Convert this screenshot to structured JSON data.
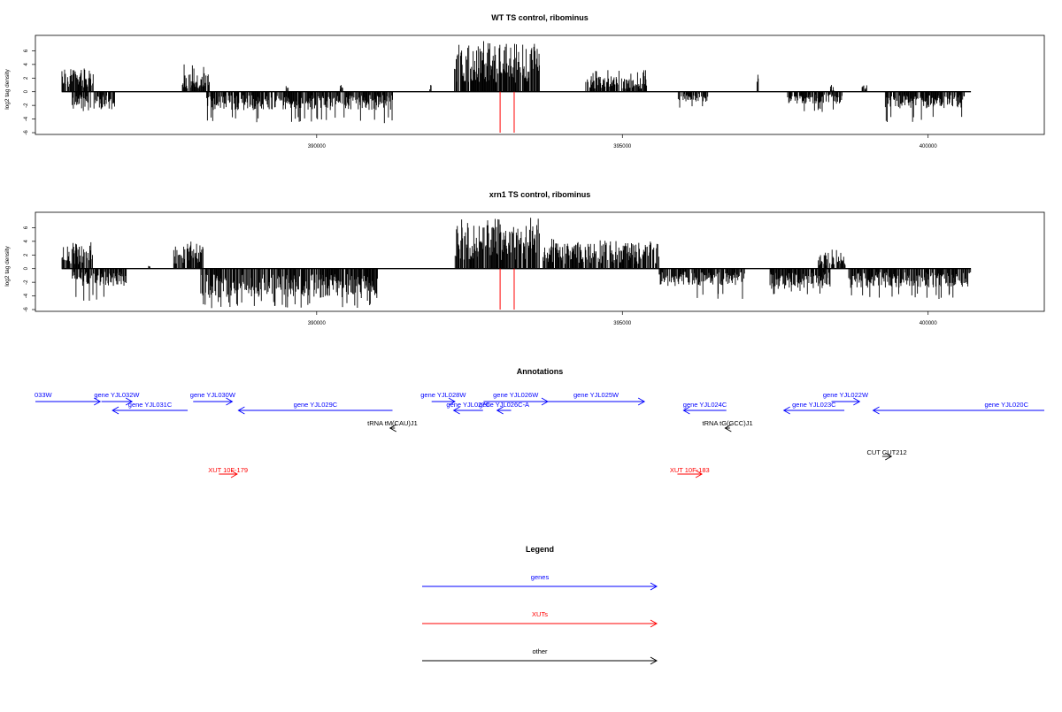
{
  "chart_data": [
    {
      "type": "bar",
      "title": "WT TS control, ribominus",
      "ylabel": "log2 tag density",
      "ylim": [
        -6,
        8
      ],
      "yticks": [
        -6,
        -4,
        -2,
        0,
        2,
        4,
        6
      ],
      "xlim": [
        385400,
        401900
      ],
      "xticks": [
        390000,
        395000,
        400000
      ],
      "features": [
        393000,
        393230
      ],
      "feature_color": "#ff0000",
      "plus_segments": [
        {
          "start": 385830,
          "end": 386350,
          "avg": 2.4,
          "max": 3.6
        },
        {
          "start": 387800,
          "end": 388250,
          "avg": 2.0,
          "max": 4.0
        },
        {
          "start": 389500,
          "end": 389540,
          "avg": 0.9,
          "max": 1.0
        },
        {
          "start": 390380,
          "end": 390430,
          "avg": 0.9,
          "max": 1.0
        },
        {
          "start": 391850,
          "end": 391880,
          "avg": 0.9,
          "max": 1.0
        },
        {
          "start": 392250,
          "end": 393650,
          "avg": 5.2,
          "max": 7.5
        },
        {
          "start": 394400,
          "end": 395400,
          "avg": 1.7,
          "max": 3.2
        },
        {
          "start": 397200,
          "end": 397230,
          "avg": 2.0,
          "max": 2.5
        },
        {
          "start": 398400,
          "end": 398470,
          "avg": 0.7,
          "max": 1.0
        },
        {
          "start": 398920,
          "end": 399000,
          "avg": 0.8,
          "max": 1.0
        }
      ],
      "minus_segments": [
        {
          "start": 386000,
          "end": 386700,
          "avg": 1.9,
          "max": 3.0
        },
        {
          "start": 388200,
          "end": 391250,
          "avg": 2.0,
          "max": 4.6
        },
        {
          "start": 395900,
          "end": 396400,
          "avg": 1.1,
          "max": 2.5
        },
        {
          "start": 397700,
          "end": 398600,
          "avg": 1.3,
          "max": 3.0
        },
        {
          "start": 399300,
          "end": 400600,
          "avg": 1.8,
          "max": 4.5
        }
      ]
    },
    {
      "type": "bar",
      "title": "xrn1 TS control, ribominus",
      "ylabel": "log2 tag density",
      "ylim": [
        -6,
        8
      ],
      "yticks": [
        -6,
        -4,
        -2,
        0,
        2,
        4,
        6
      ],
      "xlim": [
        385400,
        401900
      ],
      "xticks": [
        390000,
        395000,
        400000
      ],
      "features": [
        393000,
        393230
      ],
      "feature_color": "#ff0000",
      "plus_segments": [
        {
          "start": 385830,
          "end": 386350,
          "avg": 2.5,
          "max": 4.3
        },
        {
          "start": 387650,
          "end": 388150,
          "avg": 2.6,
          "max": 4.5
        },
        {
          "start": 387250,
          "end": 387280,
          "avg": 0.4,
          "max": 0.6
        },
        {
          "start": 392250,
          "end": 393650,
          "avg": 4.8,
          "max": 7.5
        },
        {
          "start": 393700,
          "end": 395600,
          "avg": 2.8,
          "max": 4.5
        },
        {
          "start": 398200,
          "end": 398650,
          "avg": 1.5,
          "max": 2.8
        }
      ],
      "minus_segments": [
        {
          "start": 386000,
          "end": 386900,
          "avg": 1.9,
          "max": 4.8
        },
        {
          "start": 388100,
          "end": 391000,
          "avg": 3.2,
          "max": 5.8
        },
        {
          "start": 395600,
          "end": 397000,
          "avg": 1.9,
          "max": 4.6
        },
        {
          "start": 397400,
          "end": 398400,
          "avg": 2.2,
          "max": 4.0
        },
        {
          "start": 398700,
          "end": 400700,
          "avg": 2.1,
          "max": 4.5
        }
      ]
    }
  ],
  "annotations": {
    "title": "Annotations",
    "xlim": [
      385400,
      401900
    ],
    "features": [
      {
        "label": "033W",
        "start": 385400,
        "end": 386460,
        "strand": "+",
        "kind": "gene",
        "row": 0
      },
      {
        "label": "gene YJL032W",
        "start": 386480,
        "end": 386980,
        "strand": "+",
        "kind": "gene",
        "row": 0
      },
      {
        "label": "gene YJL031C",
        "start": 386660,
        "end": 387890,
        "strand": "-",
        "kind": "gene",
        "row": 1
      },
      {
        "label": "gene YJL030W",
        "start": 387980,
        "end": 388620,
        "strand": "+",
        "kind": "gene",
        "row": 0
      },
      {
        "label": "gene YJL029C",
        "start": 388720,
        "end": 391240,
        "strand": "-",
        "kind": "gene",
        "row": 1
      },
      {
        "label": "tRNA tM(CAU)J1",
        "start": 391200,
        "end": 391280,
        "strand": "-",
        "kind": "other",
        "row": 2
      },
      {
        "label": "gene YJL028W",
        "start": 391880,
        "end": 392260,
        "strand": "+",
        "kind": "gene",
        "row": 0
      },
      {
        "label": "gene YJL027C",
        "start": 392240,
        "end": 392720,
        "strand": "-",
        "kind": "gene",
        "row": 1
      },
      {
        "label": "gene YJL026W",
        "start": 392730,
        "end": 393780,
        "strand": "+",
        "kind": "gene",
        "row": 0
      },
      {
        "label": "gene YJL026C-A",
        "start": 392950,
        "end": 393180,
        "strand": "-",
        "kind": "gene",
        "row": 1
      },
      {
        "label": "gene YJL025W",
        "start": 393780,
        "end": 395360,
        "strand": "+",
        "kind": "gene",
        "row": 0
      },
      {
        "label": "gene YJL024C",
        "start": 396000,
        "end": 396700,
        "strand": "-",
        "kind": "gene",
        "row": 1
      },
      {
        "label": "tRNA tG(GCC)J1",
        "start": 396680,
        "end": 396760,
        "strand": "-",
        "kind": "other",
        "row": 2
      },
      {
        "label": "gene YJL022W",
        "start": 398420,
        "end": 398880,
        "strand": "+",
        "kind": "gene",
        "row": 0
      },
      {
        "label": "gene YJL023C",
        "start": 397640,
        "end": 398630,
        "strand": "-",
        "kind": "gene",
        "row": 1
      },
      {
        "label": "gene YJL020C",
        "start": 399100,
        "end": 401900,
        "strand": "-",
        "kind": "gene",
        "row": 1
      },
      {
        "label": "CUT CUT212",
        "start": 399250,
        "end": 399400,
        "strand": "+",
        "kind": "other",
        "row": 3
      },
      {
        "label": "XUT 10F-179",
        "start": 388400,
        "end": 388700,
        "strand": "+",
        "kind": "xut",
        "row": 4
      },
      {
        "label": "XUT 10F-183",
        "start": 395900,
        "end": 396300,
        "strand": "+",
        "kind": "xut",
        "row": 4
      }
    ]
  },
  "legend": {
    "title": "Legend",
    "items": [
      {
        "label": "genes",
        "color": "#0000ff"
      },
      {
        "label": "XUTs",
        "color": "#ff0000"
      },
      {
        "label": "other",
        "color": "#000000"
      }
    ]
  },
  "colors": {
    "gene": "#0000ff",
    "xut": "#ff0000",
    "other": "#000000"
  }
}
